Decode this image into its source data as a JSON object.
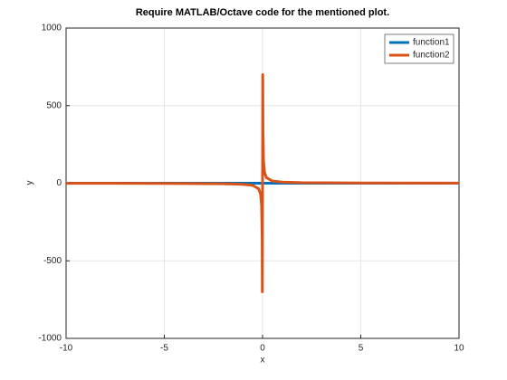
{
  "chart_data": {
    "type": "line",
    "title": "Require MATLAB/Octave code for the mentioned plot.",
    "x_label": "x",
    "y_label": "y",
    "x": [
      -10,
      -5,
      -2,
      -1,
      -0.5,
      -0.2,
      -0.1,
      -0.05,
      -0.02,
      -0.01,
      0.01,
      0.02,
      0.05,
      0.1,
      0.2,
      0.5,
      1,
      2,
      5,
      10
    ],
    "series": [
      {
        "name": "function1",
        "color": "#0072bd",
        "values": [
          0,
          0,
          0,
          0,
          0,
          0,
          0,
          0,
          0,
          0,
          0,
          0,
          0,
          0,
          0,
          0,
          0,
          0,
          0,
          0
        ]
      },
      {
        "name": "function2",
        "color": "#d95319",
        "values": [
          -0.7,
          -1.4,
          -3.5,
          -7,
          -14,
          -35,
          -70,
          -140,
          -350,
          -700,
          700,
          350,
          140,
          70,
          35,
          14,
          7,
          3.5,
          1.4,
          0.7
        ]
      }
    ],
    "xlim": [
      -10,
      10
    ],
    "ylim": [
      -1000,
      1000
    ],
    "xticks": [
      -10,
      -5,
      0,
      5,
      10
    ],
    "yticks": [
      -1000,
      -500,
      0,
      500,
      1000
    ],
    "grid": true,
    "legend": "top-right"
  }
}
